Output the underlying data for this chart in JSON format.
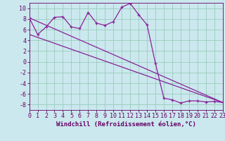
{
  "xlabel": "Windchill (Refroidissement éolien,°C)",
  "bg_color": "#cbe8ee",
  "grid_color": "#99ccbb",
  "line_color": "#882299",
  "spine_color": "#660066",
  "xlim": [
    0,
    23
  ],
  "ylim": [
    -9,
    11
  ],
  "yticks": [
    -8,
    -6,
    -4,
    -2,
    0,
    2,
    4,
    6,
    8,
    10
  ],
  "xticks": [
    0,
    1,
    2,
    3,
    4,
    5,
    6,
    7,
    8,
    9,
    10,
    11,
    12,
    13,
    14,
    15,
    16,
    17,
    18,
    19,
    20,
    21,
    22,
    23
  ],
  "series1_x": [
    0,
    1,
    2,
    3,
    4,
    5,
    6,
    7,
    8,
    9,
    10,
    11,
    12,
    13,
    14,
    15,
    16,
    17,
    18,
    19,
    20,
    21,
    22,
    23
  ],
  "series1_y": [
    8.2,
    5.1,
    6.5,
    8.3,
    8.4,
    6.5,
    6.2,
    9.2,
    7.2,
    6.8,
    7.5,
    10.2,
    10.9,
    8.8,
    6.9,
    -0.3,
    -6.8,
    -7.1,
    -7.7,
    -7.3,
    -7.3,
    -7.5,
    -7.4,
    -7.6
  ],
  "series2_x": [
    0,
    23
  ],
  "series2_y": [
    8.2,
    -7.6
  ],
  "series3_x": [
    0,
    23
  ],
  "series3_y": [
    5.1,
    -7.6
  ],
  "tick_fontsize": 6.0,
  "xlabel_fontsize": 6.5
}
